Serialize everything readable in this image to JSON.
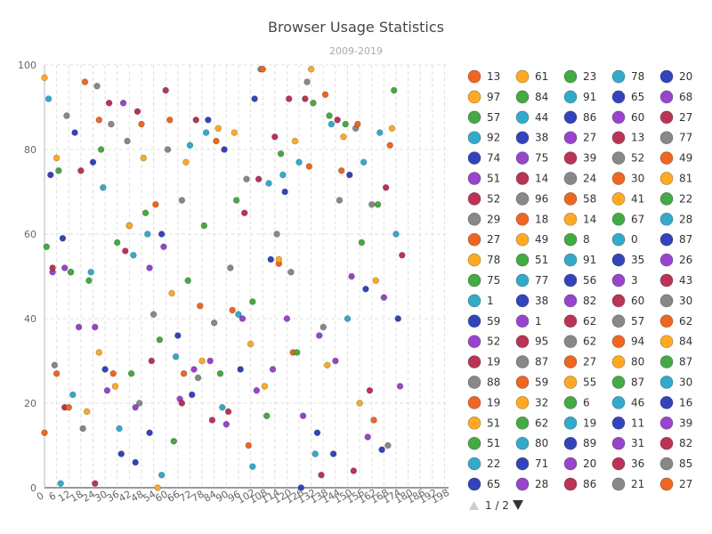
{
  "chart_data": {
    "type": "scatter",
    "title": "Browser Usage Statistics",
    "subtitle": "2009-2019",
    "xlabel": "",
    "ylabel": "",
    "xlim": [
      0,
      200
    ],
    "ylim": [
      0,
      100
    ],
    "x_ticks": [
      "0",
      "6",
      "12",
      "18",
      "24",
      "30",
      "36",
      "42",
      "48",
      "54",
      "60",
      "66",
      "72",
      "78",
      "84",
      "90",
      "96",
      "102",
      "108",
      "114",
      "120",
      "126",
      "132",
      "138",
      "144",
      "150",
      "156",
      "162",
      "168",
      "174",
      "180",
      "186",
      "192",
      "198"
    ],
    "y_ticks": [
      "0",
      "20",
      "40",
      "60",
      "80",
      "100"
    ],
    "grid": true,
    "legend_position": "right",
    "legend_page": "1 / 2",
    "legend_columns": [
      {
        "color": "#ee6622",
        "labels": [
          "13",
          "97",
          "57",
          "92",
          "74",
          "51",
          "52",
          "29",
          "27",
          "78",
          "75",
          "1",
          "59",
          "52",
          "19",
          "88",
          "19",
          "51",
          "51",
          "22",
          "65"
        ]
      },
      {
        "color": "#9944cc",
        "labels": [
          "61",
          "84",
          "44",
          "38",
          "75",
          "14",
          "96",
          "18",
          "49",
          "51",
          "77",
          "38",
          "1",
          "95",
          "87",
          "59",
          "32",
          "62",
          "80",
          "71",
          "28"
        ]
      },
      {
        "color": "#44aa44",
        "labels": [
          "23",
          "91",
          "86",
          "27",
          "39",
          "24",
          "58",
          "14",
          "8",
          "91",
          "56",
          "82",
          "62",
          "62",
          "27",
          "55",
          "6",
          "19",
          "89",
          "20",
          "86"
        ]
      },
      {
        "color": "#888888",
        "labels": [
          "78",
          "65",
          "60",
          "13",
          "52",
          "30",
          "41",
          "67",
          "0",
          "35",
          "3",
          "60",
          "57",
          "94",
          "80",
          "87",
          "46",
          "11",
          "31",
          "36",
          "21"
        ]
      },
      {
        "color": "#3344bb",
        "labels": [
          "20",
          "68",
          "27",
          "77",
          "49",
          "81",
          "22",
          "28",
          "87",
          "26",
          "43",
          "30",
          "62",
          "84",
          "87",
          "30",
          "16",
          "39",
          "82",
          "85",
          "27"
        ]
      }
    ],
    "legend_colors": [
      "#ee6622",
      "#ffaa22",
      "#44aa44",
      "#33aacc",
      "#3344bb",
      "#9944cc",
      "#bb3355",
      "#888888"
    ],
    "series": [
      {
        "name": "",
        "points": [
          [
            0,
            13
          ],
          [
            0,
            97
          ],
          [
            1,
            57
          ],
          [
            2,
            92
          ],
          [
            3,
            74
          ],
          [
            4,
            51
          ],
          [
            4,
            52
          ],
          [
            5,
            29
          ],
          [
            6,
            27
          ],
          [
            6,
            78
          ],
          [
            7,
            75
          ],
          [
            8,
            1
          ],
          [
            9,
            59
          ],
          [
            10,
            52
          ],
          [
            10,
            19
          ],
          [
            11,
            88
          ],
          [
            12,
            19
          ],
          [
            13,
            51
          ],
          [
            13,
            51
          ],
          [
            14,
            22
          ],
          [
            15,
            84
          ],
          [
            17,
            38
          ],
          [
            18,
            75
          ],
          [
            19,
            14
          ],
          [
            20,
            96
          ],
          [
            21,
            18
          ],
          [
            22,
            49
          ],
          [
            23,
            51
          ],
          [
            24,
            77
          ],
          [
            25,
            38
          ],
          [
            25,
            1
          ],
          [
            26,
            95
          ],
          [
            27,
            87
          ],
          [
            27,
            32
          ],
          [
            28,
            80
          ],
          [
            29,
            71
          ],
          [
            30,
            28
          ],
          [
            31,
            23
          ],
          [
            32,
            91
          ],
          [
            33,
            86
          ],
          [
            34,
            27
          ],
          [
            35,
            24
          ],
          [
            36,
            58
          ],
          [
            37,
            14
          ],
          [
            38,
            8
          ],
          [
            39,
            91
          ],
          [
            40,
            56
          ],
          [
            41,
            82
          ],
          [
            42,
            62
          ],
          [
            42,
            62
          ],
          [
            43,
            27
          ],
          [
            44,
            55
          ],
          [
            45,
            6
          ],
          [
            45,
            19
          ],
          [
            46,
            89
          ],
          [
            47,
            20
          ],
          [
            48,
            86
          ],
          [
            49,
            78
          ],
          [
            50,
            65
          ],
          [
            51,
            60
          ],
          [
            52,
            13
          ],
          [
            52,
            52
          ],
          [
            53,
            30
          ],
          [
            54,
            41
          ],
          [
            55,
            67
          ],
          [
            56,
            0
          ],
          [
            57,
            35
          ],
          [
            58,
            3
          ],
          [
            58,
            60
          ],
          [
            59,
            57
          ],
          [
            60,
            94
          ],
          [
            61,
            80
          ],
          [
            62,
            87
          ],
          [
            63,
            46
          ],
          [
            64,
            11
          ],
          [
            65,
            31
          ],
          [
            66,
            36
          ],
          [
            67,
            21
          ],
          [
            68,
            20
          ],
          [
            68,
            68
          ],
          [
            69,
            27
          ],
          [
            70,
            77
          ],
          [
            71,
            49
          ],
          [
            72,
            81
          ],
          [
            73,
            22
          ],
          [
            74,
            28
          ],
          [
            75,
            87
          ],
          [
            76,
            26
          ],
          [
            77,
            43
          ],
          [
            78,
            30
          ],
          [
            79,
            62
          ],
          [
            80,
            84
          ],
          [
            81,
            87
          ],
          [
            82,
            30
          ],
          [
            83,
            16
          ],
          [
            84,
            39
          ],
          [
            85,
            82
          ],
          [
            86,
            85
          ],
          [
            87,
            27
          ],
          [
            88,
            19
          ],
          [
            89,
            80
          ],
          [
            90,
            15
          ],
          [
            91,
            18
          ],
          [
            92,
            52
          ],
          [
            93,
            42
          ],
          [
            94,
            84
          ],
          [
            95,
            68
          ],
          [
            96,
            41
          ],
          [
            97,
            28
          ],
          [
            98,
            40
          ],
          [
            99,
            65
          ],
          [
            100,
            73
          ],
          [
            101,
            10
          ],
          [
            102,
            34
          ],
          [
            103,
            44
          ],
          [
            103,
            5
          ],
          [
            104,
            92
          ],
          [
            105,
            23
          ],
          [
            106,
            73
          ],
          [
            107,
            99
          ],
          [
            108,
            99
          ],
          [
            109,
            24
          ],
          [
            110,
            17
          ],
          [
            111,
            72
          ],
          [
            112,
            54
          ],
          [
            113,
            28
          ],
          [
            114,
            83
          ],
          [
            115,
            60
          ],
          [
            116,
            53
          ],
          [
            116,
            54
          ],
          [
            117,
            79
          ],
          [
            118,
            74
          ],
          [
            119,
            70
          ],
          [
            120,
            40
          ],
          [
            121,
            92
          ],
          [
            122,
            51
          ],
          [
            123,
            32
          ],
          [
            124,
            82
          ],
          [
            125,
            32
          ],
          [
            126,
            77
          ],
          [
            127,
            0
          ],
          [
            128,
            17
          ],
          [
            129,
            92
          ],
          [
            130,
            96
          ],
          [
            131,
            76
          ],
          [
            132,
            99
          ],
          [
            133,
            91
          ],
          [
            134,
            8
          ],
          [
            135,
            13
          ],
          [
            136,
            36
          ],
          [
            137,
            3
          ],
          [
            138,
            38
          ],
          [
            139,
            93
          ],
          [
            140,
            29
          ],
          [
            141,
            88
          ],
          [
            142,
            86
          ],
          [
            143,
            8
          ],
          [
            144,
            30
          ],
          [
            145,
            87
          ],
          [
            146,
            68
          ],
          [
            147,
            75
          ],
          [
            148,
            83
          ],
          [
            149,
            86
          ],
          [
            150,
            40
          ],
          [
            151,
            74
          ],
          [
            152,
            50
          ],
          [
            153,
            4
          ],
          [
            154,
            85
          ],
          [
            155,
            86
          ],
          [
            156,
            20
          ],
          [
            157,
            58
          ],
          [
            158,
            77
          ],
          [
            159,
            47
          ],
          [
            160,
            12
          ],
          [
            161,
            23
          ],
          [
            162,
            67
          ],
          [
            163,
            16
          ],
          [
            164,
            49
          ],
          [
            165,
            67
          ],
          [
            166,
            84
          ],
          [
            167,
            9
          ],
          [
            168,
            45
          ],
          [
            169,
            71
          ],
          [
            170,
            10
          ],
          [
            171,
            81
          ],
          [
            172,
            85
          ],
          [
            173,
            94
          ],
          [
            174,
            60
          ],
          [
            175,
            40
          ],
          [
            176,
            24
          ],
          [
            177,
            55
          ]
        ]
      }
    ]
  }
}
